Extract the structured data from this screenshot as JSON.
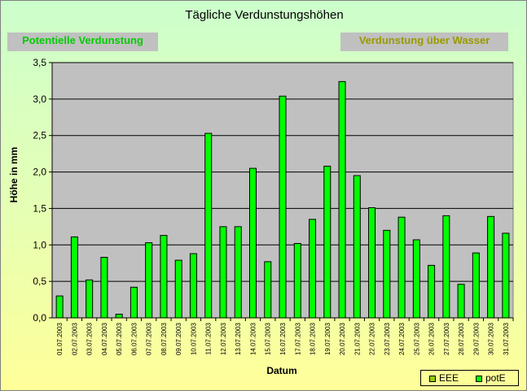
{
  "chart_title": "Tägliche Verdunstungshöhen",
  "buttons": {
    "potential": "Potentielle Verdunstung",
    "water": "Verdunstung über Wasser"
  },
  "legend": {
    "eee": "EEE",
    "pote": "potE"
  },
  "colors": {
    "bar": "#00ff00",
    "plot_bg": "#c0c0c0",
    "eee": "#99cc00",
    "button_potential_text": "#00cc00",
    "button_water_text": "#999900"
  },
  "chart_data": {
    "type": "bar",
    "xlabel": "Datum",
    "ylabel": "Höhe in mm",
    "ylim": [
      0,
      3.5
    ],
    "yticks": [
      "0,0",
      "0,5",
      "1,0",
      "1,5",
      "2,0",
      "2,5",
      "3,0",
      "3,5"
    ],
    "grid": true,
    "legend_position": "bottom-right",
    "categories": [
      "01.07.2003",
      "02.07.2003",
      "03.07.2003",
      "04.07.2003",
      "05.07.2003",
      "06.07.2003",
      "07.07.2003",
      "08.07.2003",
      "09.07.2003",
      "10.07.2003",
      "11.07.2003",
      "12.07.2003",
      "13.07.2003",
      "14.07.2003",
      "15.07.2003",
      "16.07.2003",
      "17.07.2003",
      "18.07.2003",
      "19.07.2003",
      "20.07.2003",
      "21.07.2003",
      "22.07.2003",
      "23.07.2003",
      "24.07.2003",
      "25.07.2003",
      "26.07.2003",
      "27.07.2003",
      "28.07.2003",
      "29.07.2003",
      "30.07.2003",
      "31.07.2003"
    ],
    "series": [
      {
        "name": "potE",
        "values": [
          0.3,
          1.11,
          0.52,
          0.83,
          0.05,
          0.42,
          1.03,
          1.13,
          0.79,
          0.88,
          2.53,
          1.25,
          1.25,
          2.05,
          0.77,
          3.04,
          1.02,
          1.35,
          2.08,
          3.24,
          1.95,
          1.51,
          1.2,
          1.38,
          1.07,
          0.72,
          1.4,
          0.46,
          0.89,
          1.39,
          1.16
        ]
      }
    ]
  }
}
